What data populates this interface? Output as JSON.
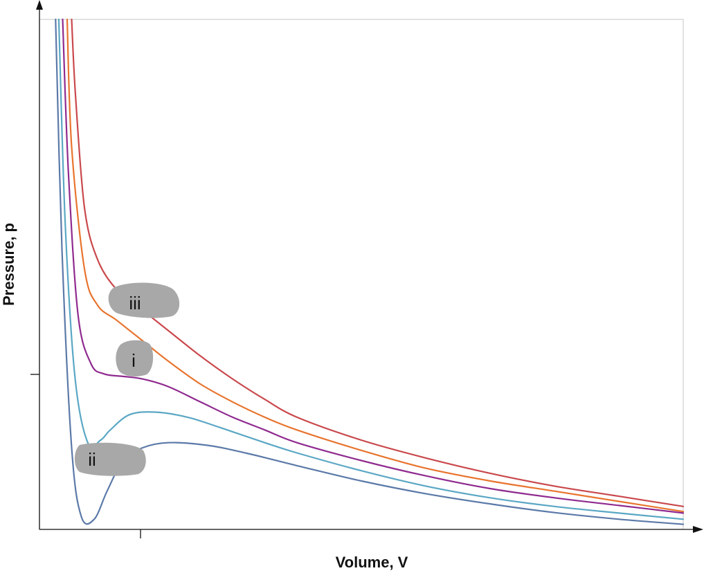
{
  "chart_data": {
    "type": "line",
    "xlabel": "Volume, V",
    "ylabel": "Pressure, p",
    "grid": false,
    "legend": "none",
    "xlim": [
      0,
      10
    ],
    "ylim": [
      0,
      10
    ],
    "series": [
      {
        "color": "#c9484c",
        "x": [
          0.5,
          0.56,
          0.7,
          0.9,
          1.2,
          1.6,
          2.0,
          2.5,
          3.0,
          3.5,
          4.0,
          5.0,
          6.0,
          7.0,
          8.0,
          9.0,
          10.0
        ],
        "y": [
          10.0,
          8.5,
          6.3,
          5.3,
          4.7,
          4.3,
          3.9,
          3.4,
          2.95,
          2.55,
          2.2,
          1.75,
          1.4,
          1.1,
          0.85,
          0.65,
          0.45
        ]
      },
      {
        "color": "#e8742e",
        "x": [
          0.43,
          0.5,
          0.7,
          0.9,
          1.2,
          1.6,
          2.0,
          2.5,
          3.0,
          3.5,
          4.0,
          5.0,
          6.0,
          7.0,
          8.0,
          9.0,
          10.0
        ],
        "y": [
          10.0,
          7.5,
          5.1,
          4.4,
          4.1,
          3.7,
          3.3,
          2.85,
          2.5,
          2.2,
          1.95,
          1.55,
          1.2,
          0.95,
          0.75,
          0.55,
          0.35
        ]
      },
      {
        "color": "#8f2a8f",
        "x": [
          0.36,
          0.45,
          0.6,
          0.8,
          1.0,
          1.3,
          1.6,
          2.0,
          2.5,
          3.0,
          3.5,
          4.0,
          5.0,
          6.0,
          7.0,
          8.0,
          9.0,
          10.0
        ],
        "y": [
          10.0,
          7.0,
          4.2,
          3.25,
          3.05,
          3.0,
          2.95,
          2.8,
          2.5,
          2.2,
          1.95,
          1.7,
          1.35,
          1.05,
          0.8,
          0.62,
          0.47,
          0.32
        ]
      },
      {
        "color": "#5aa7c4",
        "x": [
          0.3,
          0.4,
          0.55,
          0.75,
          0.95,
          1.1,
          1.4,
          1.8,
          2.3,
          2.8,
          3.5,
          4.0,
          5.0,
          6.0,
          7.0,
          8.0,
          9.0,
          10.0
        ],
        "y": [
          10.0,
          6.0,
          3.0,
          1.7,
          1.75,
          1.95,
          2.25,
          2.3,
          2.2,
          2.0,
          1.7,
          1.5,
          1.15,
          0.85,
          0.62,
          0.45,
          0.32,
          0.2
        ]
      },
      {
        "color": "#5b79a8",
        "x": [
          0.25,
          0.35,
          0.5,
          0.65,
          0.85,
          1.05,
          1.3,
          1.6,
          2.0,
          2.6,
          3.2,
          4.0,
          5.0,
          6.0,
          7.0,
          8.0,
          9.0,
          10.0
        ],
        "y": [
          10.0,
          5.5,
          1.6,
          0.25,
          0.2,
          0.75,
          1.35,
          1.6,
          1.7,
          1.65,
          1.5,
          1.25,
          0.95,
          0.7,
          0.5,
          0.33,
          0.2,
          0.1
        ]
      }
    ],
    "markers": [
      {
        "label": "iii"
      },
      {
        "label": "i"
      },
      {
        "label": "ii"
      }
    ]
  }
}
